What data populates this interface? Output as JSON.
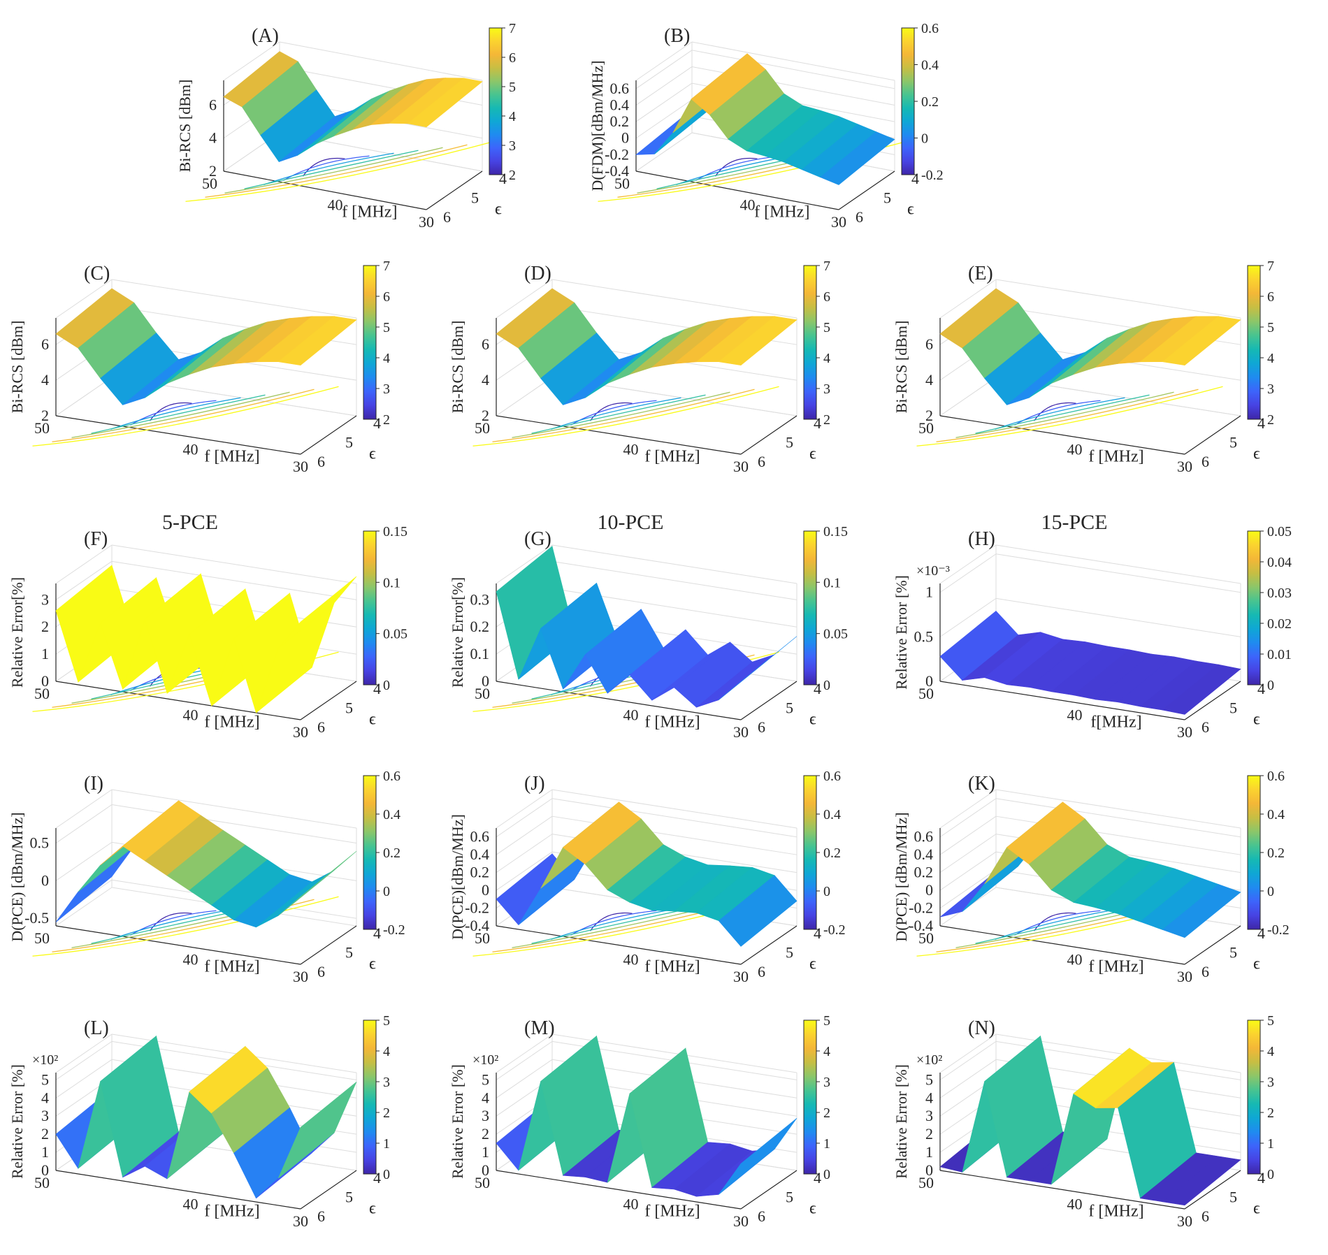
{
  "figure": {
    "description_free": true,
    "colormap": [
      "#3e26a8",
      "#4743e3",
      "#3d64fb",
      "#1f8bf0",
      "#0fa7d5",
      "#16b9b3",
      "#48c490",
      "#8cc669",
      "#c7be43",
      "#f4b737",
      "#fbd32f",
      "#f9fb15"
    ],
    "axis_color": "#262626",
    "grid_color": "#dddddd"
  },
  "chart_data": [
    {
      "id": "A",
      "type": "surface",
      "panel_label": "(A)",
      "title": "",
      "zlabel": "Bi-RCS [dBm]",
      "xlabel": "f [MHz]",
      "ylabel": "ϵ",
      "x_ticks": [
        "50",
        "40",
        "30"
      ],
      "y_ticks": [
        "4",
        "5",
        "6"
      ],
      "z_ticks": [
        "2",
        "4",
        "6"
      ],
      "zlim": [
        2,
        7.5
      ],
      "exponent": "",
      "colorbar_ticks": [
        "2",
        "3",
        "4",
        "5",
        "6",
        "7"
      ],
      "clim": [
        2,
        7
      ],
      "values": [
        6.5,
        6.1,
        4.6,
        3.2,
        3.8,
        4.7,
        5.4,
        6.0,
        6.5,
        6.8,
        7.0,
        7.0
      ],
      "contours": true
    },
    {
      "id": "B",
      "type": "surface",
      "panel_label": "(B)",
      "title": "",
      "zlabel": "D(FDM)[dBm/MHz]",
      "xlabel": "f [MHz]",
      "ylabel": "ϵ",
      "x_ticks": [
        "50",
        "40",
        "30"
      ],
      "y_ticks": [
        "4",
        "5",
        "6"
      ],
      "z_ticks": [
        "-0.4",
        "-0.2",
        "0",
        "0.2",
        "0.4",
        "0.6"
      ],
      "zlim": [
        -0.4,
        0.7
      ],
      "exponent": "",
      "colorbar_ticks": [
        "-0.2",
        "0",
        "0.2",
        "0.4",
        "0.6"
      ],
      "clim": [
        -0.2,
        0.6
      ],
      "values": [
        -0.2,
        -0.15,
        0.15,
        0.6,
        0.45,
        0.2,
        0.1,
        0.08,
        0.05,
        0.0,
        -0.05,
        -0.1
      ],
      "contours": true
    },
    {
      "id": "C",
      "type": "surface",
      "panel_label": "(C)",
      "title": "",
      "zlabel": "Bi-RCS [dBm]",
      "xlabel": "f [MHz]",
      "ylabel": "ϵ",
      "x_ticks": [
        "50",
        "40",
        "30"
      ],
      "y_ticks": [
        "4",
        "5",
        "6"
      ],
      "z_ticks": [
        "2",
        "4",
        "6"
      ],
      "zlim": [
        2,
        7.5
      ],
      "exponent": "",
      "colorbar_ticks": [
        "2",
        "3",
        "4",
        "5",
        "6",
        "7"
      ],
      "clim": [
        2,
        7
      ],
      "values": [
        6.6,
        6.0,
        4.5,
        3.2,
        3.8,
        4.8,
        5.5,
        6.1,
        6.5,
        6.8,
        7.0,
        7.0
      ],
      "contours": true
    },
    {
      "id": "D",
      "type": "surface",
      "panel_label": "(D)",
      "title": "",
      "zlabel": "Bi-RCS [dBm]",
      "xlabel": "f [MHz]",
      "ylabel": "ϵ",
      "x_ticks": [
        "50",
        "40",
        "30"
      ],
      "y_ticks": [
        "4",
        "5",
        "6"
      ],
      "z_ticks": [
        "2",
        "4",
        "6"
      ],
      "zlim": [
        2,
        7.5
      ],
      "exponent": "",
      "colorbar_ticks": [
        "2",
        "3",
        "4",
        "5",
        "6",
        "7"
      ],
      "clim": [
        2,
        7
      ],
      "values": [
        6.6,
        6.0,
        4.5,
        3.2,
        3.8,
        4.8,
        5.5,
        6.1,
        6.5,
        6.8,
        7.0,
        7.0
      ],
      "contours": true
    },
    {
      "id": "E",
      "type": "surface",
      "panel_label": "(E)",
      "title": "",
      "zlabel": "Bi-RCS [dBm]",
      "xlabel": "f [MHz]",
      "ylabel": "ϵ",
      "x_ticks": [
        "50",
        "40",
        "30"
      ],
      "y_ticks": [
        "4",
        "5",
        "6"
      ],
      "z_ticks": [
        "2",
        "4",
        "6"
      ],
      "zlim": [
        2,
        7.5
      ],
      "exponent": "",
      "colorbar_ticks": [
        "2",
        "3",
        "4",
        "5",
        "6",
        "7"
      ],
      "clim": [
        2,
        7
      ],
      "values": [
        6.6,
        6.0,
        4.5,
        3.2,
        3.8,
        4.8,
        5.5,
        6.1,
        6.5,
        6.8,
        7.0,
        7.0
      ],
      "contours": true
    },
    {
      "id": "F",
      "type": "surface",
      "panel_label": "(F)",
      "title": "5-PCE",
      "zlabel": "Relative Error[%]",
      "xlabel": "f [MHz]",
      "ylabel": "ϵ",
      "x_ticks": [
        "50",
        "40",
        "30"
      ],
      "y_ticks": [
        "4",
        "5",
        "6"
      ],
      "z_ticks": [
        "0",
        "1",
        "2",
        "3"
      ],
      "zlim": [
        0,
        3.6
      ],
      "exponent": "",
      "colorbar_ticks": [
        "0",
        "0.05",
        "0.1",
        "0.15"
      ],
      "clim": [
        0,
        0.15
      ],
      "values": [
        2.6,
        0.1,
        2.4,
        0.1,
        2.8,
        0.2,
        2.5,
        0.0,
        2.6,
        0.0,
        2.5,
        3.6
      ],
      "contours": true
    },
    {
      "id": "G",
      "type": "surface",
      "panel_label": "(G)",
      "title": "10-PCE",
      "zlabel": "Relative Error[%]",
      "xlabel": "f [MHz]",
      "ylabel": "ϵ",
      "x_ticks": [
        "50",
        "40",
        "30"
      ],
      "y_ticks": [
        "4",
        "5",
        "6"
      ],
      "z_ticks": [
        "0",
        "0.1",
        "0.2",
        "0.3"
      ],
      "zlim": [
        0,
        0.36
      ],
      "exponent": "",
      "colorbar_ticks": [
        "0",
        "0.05",
        "0.1",
        "0.15"
      ],
      "clim": [
        0,
        0.15
      ],
      "values": [
        0.33,
        0.02,
        0.22,
        0.01,
        0.15,
        0.02,
        0.1,
        0.02,
        0.08,
        0.02,
        0.06,
        0.14
      ],
      "contours": true
    },
    {
      "id": "H",
      "type": "surface",
      "panel_label": "(H)",
      "title": "15-PCE",
      "zlabel": "Relative Error [%]",
      "xlabel": "f[MHz]",
      "ylabel": "ϵ",
      "x_ticks": [
        "50",
        "40",
        "30"
      ],
      "y_ticks": [
        "4",
        "5",
        "6"
      ],
      "z_ticks": [
        "0",
        "0.5",
        "1"
      ],
      "zlim": [
        0,
        1.1
      ],
      "exponent": "×10⁻³",
      "colorbar_ticks": [
        "0",
        "0.01",
        "0.02",
        "0.03",
        "0.04",
        "0.05"
      ],
      "clim": [
        0,
        0.05
      ],
      "values": [
        0.28,
        0.05,
        0.12,
        0.08,
        0.09,
        0.08,
        0.08,
        0.07,
        0.08,
        0.07,
        0.07,
        0.06
      ],
      "contours": false
    },
    {
      "id": "I",
      "type": "surface",
      "panel_label": "(I)",
      "title": "",
      "zlabel": "D(PCE) [dBm/MHz]",
      "xlabel": "f [MHz]",
      "ylabel": "ϵ",
      "x_ticks": [
        "50",
        "40",
        "30"
      ],
      "y_ticks": [
        "4",
        "5",
        "6"
      ],
      "z_ticks": [
        "-0.5",
        "0",
        "0.5"
      ],
      "zlim": [
        -0.6,
        0.7
      ],
      "exponent": "",
      "colorbar_ticks": [
        "-0.2",
        "0",
        "0.2",
        "0.4",
        "0.6"
      ],
      "clim": [
        -0.2,
        0.6
      ],
      "values": [
        -0.55,
        -0.1,
        0.3,
        0.6,
        0.45,
        0.3,
        0.15,
        0.0,
        -0.15,
        -0.2,
        0.0,
        0.3
      ],
      "contours": true
    },
    {
      "id": "J",
      "type": "surface",
      "panel_label": "(J)",
      "title": "",
      "zlabel": "D(PCE)[dBm/MHz]",
      "xlabel": "f [MHz]",
      "ylabel": "ϵ",
      "x_ticks": [
        "50",
        "40",
        "30"
      ],
      "y_ticks": [
        "4",
        "5",
        "6"
      ],
      "z_ticks": [
        "-0.4",
        "-0.2",
        "0",
        "0.2",
        "0.4",
        "0.6"
      ],
      "zlim": [
        -0.4,
        0.7
      ],
      "exponent": "",
      "colorbar_ticks": [
        "-0.2",
        "0",
        "0.2",
        "0.4",
        "0.6"
      ],
      "clim": [
        -0.2,
        0.6
      ],
      "values": [
        -0.1,
        -0.35,
        0.1,
        0.6,
        0.45,
        0.2,
        0.1,
        0.05,
        0.08,
        0.1,
        0.05,
        -0.2
      ],
      "contours": true
    },
    {
      "id": "K",
      "type": "surface",
      "panel_label": "(K)",
      "title": "",
      "zlabel": "D(PCE) [dBm/MHz]",
      "xlabel": "f [MHz]",
      "ylabel": "ϵ",
      "x_ticks": [
        "50",
        "40",
        "30"
      ],
      "y_ticks": [
        "4",
        "5",
        "6"
      ],
      "z_ticks": [
        "-0.4",
        "-0.2",
        "0",
        "0.2",
        "0.4",
        "0.6"
      ],
      "zlim": [
        -0.4,
        0.7
      ],
      "exponent": "",
      "colorbar_ticks": [
        "-0.2",
        "0",
        "0.2",
        "0.4",
        "0.6"
      ],
      "clim": [
        -0.2,
        0.6
      ],
      "values": [
        -0.3,
        -0.2,
        0.15,
        0.6,
        0.45,
        0.2,
        0.1,
        0.08,
        0.05,
        0.0,
        -0.05,
        -0.1
      ],
      "contours": true
    },
    {
      "id": "L",
      "type": "surface",
      "panel_label": "(L)",
      "title": "",
      "zlabel": "Relative Error [%]",
      "xlabel": "f [MHz]",
      "ylabel": "ϵ",
      "x_ticks": [
        "50",
        "40",
        "30"
      ],
      "y_ticks": [
        "4",
        "5",
        "6"
      ],
      "z_ticks": [
        "0",
        "1",
        "2",
        "3",
        "4",
        "5"
      ],
      "zlim": [
        0,
        5.4
      ],
      "exponent": "×10²",
      "colorbar_ticks": [
        "0",
        "1",
        "2",
        "3",
        "4",
        "5"
      ],
      "clim": [
        0,
        5
      ],
      "values": [
        2.0,
        0.3,
        5.3,
        0.2,
        1.0,
        0.5,
        5.5,
        4.5,
        2.5,
        0.2,
        1.5,
        4.5
      ],
      "contours": false
    },
    {
      "id": "M",
      "type": "surface",
      "panel_label": "(M)",
      "title": "",
      "zlabel": "Relative Error [%]",
      "xlabel": "f [MHz]",
      "ylabel": "ϵ",
      "x_ticks": [
        "50",
        "40",
        "30"
      ],
      "y_ticks": [
        "4",
        "5",
        "6"
      ],
      "z_ticks": [
        "0",
        "1",
        "2",
        "3",
        "4",
        "5"
      ],
      "zlim": [
        0,
        5.4
      ],
      "exponent": "×10²",
      "colorbar_ticks": [
        "0",
        "1",
        "2",
        "3",
        "4",
        "5"
      ],
      "clim": [
        0,
        5
      ],
      "values": [
        1.5,
        0.2,
        5.3,
        0.3,
        0.4,
        0.3,
        5.4,
        0.4,
        0.5,
        0.3,
        0.6,
        2.5
      ],
      "contours": false
    },
    {
      "id": "N",
      "type": "surface",
      "panel_label": "(N)",
      "title": "",
      "zlabel": "Relative Error [%]",
      "xlabel": "f [MHz]",
      "ylabel": "ϵ",
      "x_ticks": [
        "50",
        "40",
        "30"
      ],
      "y_ticks": [
        "4",
        "5",
        "6"
      ],
      "z_ticks": [
        "0",
        "1",
        "2",
        "3",
        "4",
        "5"
      ],
      "zlim": [
        0,
        5.4
      ],
      "exponent": "×10²",
      "colorbar_ticks": [
        "0",
        "1",
        "2",
        "3",
        "4",
        "5"
      ],
      "clim": [
        0,
        5
      ],
      "values": [
        0.2,
        0.1,
        5.3,
        0.2,
        0.2,
        0.2,
        5.4,
        4.8,
        5.0,
        0.2,
        0.2,
        0.2
      ],
      "contours": false
    }
  ]
}
